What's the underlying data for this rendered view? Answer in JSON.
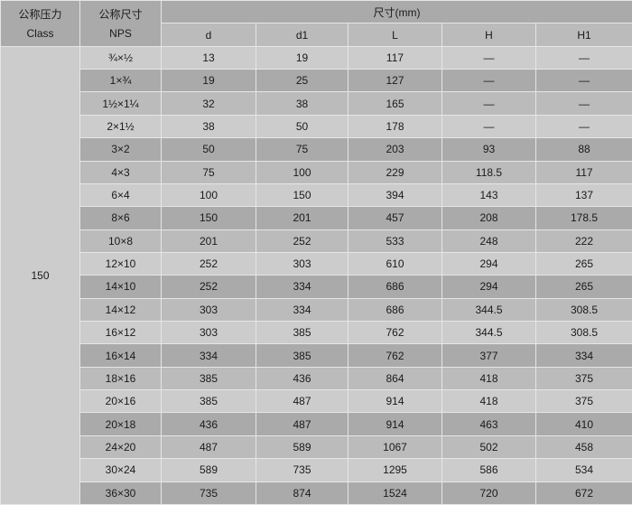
{
  "header": {
    "class_cn": "公称压力",
    "class_en": "Class",
    "nps_cn": "公称尺寸",
    "nps_en": "NPS",
    "dimensions": "尺寸(mm)",
    "columns": [
      "d",
      "d1",
      "L",
      "H",
      "H1"
    ]
  },
  "class_value": "150",
  "rows": [
    [
      "¾×½",
      "13",
      "19",
      "117",
      "—",
      "—"
    ],
    [
      "1×¾",
      "19",
      "25",
      "127",
      "—",
      "—"
    ],
    [
      "1½×1¼",
      "32",
      "38",
      "165",
      "—",
      "—"
    ],
    [
      "2×1½",
      "38",
      "50",
      "178",
      "—",
      "—"
    ],
    [
      "3×2",
      "50",
      "75",
      "203",
      "93",
      "88"
    ],
    [
      "4×3",
      "75",
      "100",
      "229",
      "118.5",
      "117"
    ],
    [
      "6×4",
      "100",
      "150",
      "394",
      "143",
      "137"
    ],
    [
      "8×6",
      "150",
      "201",
      "457",
      "208",
      "178.5"
    ],
    [
      "10×8",
      "201",
      "252",
      "533",
      "248",
      "222"
    ],
    [
      "12×10",
      "252",
      "303",
      "610",
      "294",
      "265"
    ],
    [
      "14×10",
      "252",
      "334",
      "686",
      "294",
      "265"
    ],
    [
      "14×12",
      "303",
      "334",
      "686",
      "344.5",
      "308.5"
    ],
    [
      "16×12",
      "303",
      "385",
      "762",
      "344.5",
      "308.5"
    ],
    [
      "16×14",
      "334",
      "385",
      "762",
      "377",
      "334"
    ],
    [
      "18×16",
      "385",
      "436",
      "864",
      "418",
      "375"
    ],
    [
      "20×16",
      "385",
      "487",
      "914",
      "418",
      "375"
    ],
    [
      "20×18",
      "436",
      "487",
      "914",
      "463",
      "410"
    ],
    [
      "24×20",
      "487",
      "589",
      "1067",
      "502",
      "458"
    ],
    [
      "30×24",
      "589",
      "735",
      "1295",
      "586",
      "534"
    ],
    [
      "36×30",
      "735",
      "874",
      "1524",
      "720",
      "672"
    ]
  ]
}
